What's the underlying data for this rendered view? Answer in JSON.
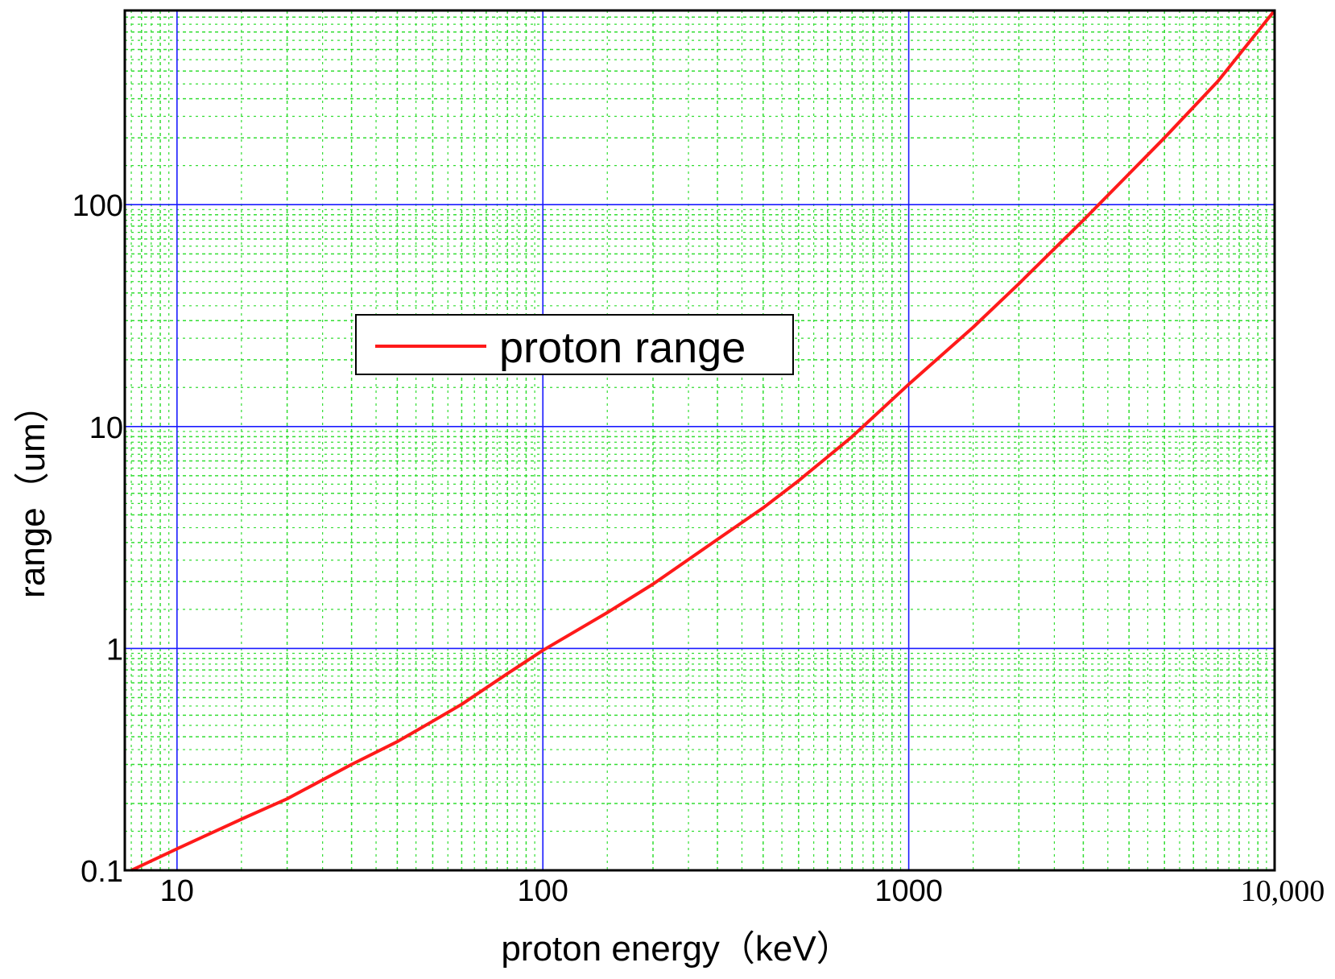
{
  "chart_data": {
    "type": "line",
    "xlabel": "proton energy（keV）",
    "ylabel": "range（um）",
    "x_scale": "log",
    "y_scale": "log",
    "xlim": [
      7.2,
      10000
    ],
    "ylim": [
      0.1,
      750
    ],
    "x_ticks": [
      {
        "value": 10,
        "label": "10"
      },
      {
        "value": 100,
        "label": "100"
      },
      {
        "value": 1000,
        "label": "1000"
      },
      {
        "value": 10000,
        "label": "10,000"
      }
    ],
    "y_ticks": [
      {
        "value": 0.1,
        "label": "0.1"
      },
      {
        "value": 1,
        "label": "1"
      },
      {
        "value": 10,
        "label": "10"
      },
      {
        "value": 100,
        "label": "100"
      }
    ],
    "grid": {
      "major": true,
      "minor": true,
      "major_color": "#1a1aff",
      "minor_color": "#33dd33"
    },
    "legend": {
      "position": "upper-middle"
    },
    "series": [
      {
        "name": "proton range",
        "color": "#ff1a1a",
        "x": [
          7.5,
          10,
          15,
          20,
          30,
          40,
          50,
          60,
          80,
          100,
          150,
          200,
          300,
          400,
          500,
          700,
          1000,
          1500,
          2000,
          3000,
          5000,
          7000,
          10000
        ],
        "y": [
          0.1,
          0.125,
          0.17,
          0.21,
          0.3,
          0.38,
          0.47,
          0.56,
          0.77,
          0.98,
          1.45,
          1.95,
          3.1,
          4.3,
          5.7,
          9.0,
          15.5,
          28,
          44,
          85,
          200,
          360,
          750
        ]
      }
    ]
  }
}
